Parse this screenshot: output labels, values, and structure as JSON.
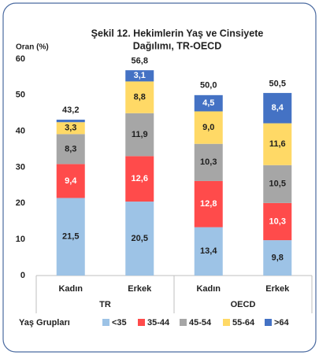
{
  "chart_data": {
    "type": "stacked_bar",
    "title": [
      "Şekil 12. Hekimlerin Yaş ve Cinsiyete",
      "Dağılımı, TR-OECD"
    ],
    "y_label": "Oran (%)",
    "categories": [
      "Kadın",
      "Erkek",
      "Kadın",
      "Erkek"
    ],
    "groups": [
      {
        "label": "TR",
        "span": 2
      },
      {
        "label": "OECD",
        "span": 2
      }
    ],
    "legend_title": "Yaş Grupları",
    "series": [
      {
        "name": "<35",
        "color": "#9dc3e6",
        "label_color": "#1f1f1f",
        "values": [
          21.5,
          20.5,
          13.4,
          9.8
        ],
        "value_labels": [
          "21,5",
          "20,5",
          "13,4",
          "9,8"
        ]
      },
      {
        "name": "35-44",
        "color": "#ff4b4b",
        "label_color": "#ffffff",
        "values": [
          9.4,
          12.6,
          12.8,
          10.3
        ],
        "value_labels": [
          "9,4",
          "12,6",
          "12,8",
          "10,3"
        ]
      },
      {
        "name": "45-54",
        "color": "#a6a6a6",
        "label_color": "#1f1f1f",
        "values": [
          8.3,
          11.9,
          10.3,
          10.5
        ],
        "value_labels": [
          "8,3",
          "11,9",
          "10,3",
          "10,5"
        ]
      },
      {
        "name": "55-64",
        "color": "#ffd966",
        "label_color": "#1f1f1f",
        "values": [
          3.3,
          8.8,
          9.0,
          11.6
        ],
        "value_labels": [
          "3,3",
          "8,8",
          "9,0",
          "11,6"
        ]
      },
      {
        "name": ">64",
        "color": "#4472c4",
        "label_color": "#ffffff",
        "values": [
          0.7,
          3.1,
          4.5,
          8.4
        ],
        "value_labels": [
          null,
          "3,1",
          "4,5",
          "8,4"
        ]
      }
    ],
    "totals": {
      "values": [
        43.2,
        56.8,
        50.0,
        50.5
      ],
      "value_labels": [
        "43,2",
        "56,8",
        "50,0",
        "50,5"
      ]
    },
    "ylim": [
      0,
      60
    ],
    "yticks": [
      0,
      10,
      20,
      30,
      40,
      50,
      60
    ],
    "grid": false
  }
}
